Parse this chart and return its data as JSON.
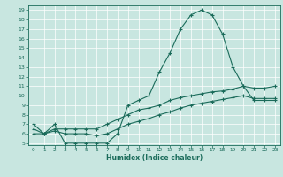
{
  "xlabel": "Humidex (Indice chaleur)",
  "background_color": "#c8e6e0",
  "grid_color": "#ffffff",
  "line_color": "#1a6b5a",
  "xlim": [
    -0.5,
    23.5
  ],
  "ylim": [
    4.8,
    19.5
  ],
  "xticks": [
    0,
    1,
    2,
    3,
    4,
    5,
    6,
    7,
    8,
    9,
    10,
    11,
    12,
    13,
    14,
    15,
    16,
    17,
    18,
    19,
    20,
    21,
    22,
    23
  ],
  "yticks": [
    5,
    6,
    7,
    8,
    9,
    10,
    11,
    12,
    13,
    14,
    15,
    16,
    17,
    18,
    19
  ],
  "line1_x": [
    0,
    1,
    2,
    3,
    4,
    5,
    6,
    7,
    8,
    9,
    10,
    11,
    12,
    13,
    14,
    15,
    16,
    17,
    18,
    19,
    20,
    21,
    22,
    23
  ],
  "line1_y": [
    7,
    6,
    7,
    5,
    5,
    5,
    5,
    5,
    6,
    9,
    9.5,
    10,
    12.5,
    14.5,
    17,
    18.5,
    19,
    18.5,
    16.5,
    13,
    11,
    10.8,
    10.8,
    11
  ],
  "line2_x": [
    0,
    1,
    2,
    3,
    4,
    5,
    6,
    7,
    8,
    9,
    10,
    11,
    12,
    13,
    14,
    15,
    16,
    17,
    18,
    19,
    20,
    21,
    22,
    23
  ],
  "line2_y": [
    6.5,
    6,
    6.5,
    6.5,
    6.5,
    6.5,
    6.5,
    7,
    7.5,
    8,
    8.5,
    8.7,
    9,
    9.5,
    9.8,
    10,
    10.2,
    10.4,
    10.5,
    10.7,
    11,
    9.5,
    9.5,
    9.5
  ],
  "line3_x": [
    0,
    1,
    2,
    3,
    4,
    5,
    6,
    7,
    8,
    9,
    10,
    11,
    12,
    13,
    14,
    15,
    16,
    17,
    18,
    19,
    20,
    21,
    22,
    23
  ],
  "line3_y": [
    6,
    6,
    6.3,
    6,
    6,
    6,
    5.8,
    6,
    6.5,
    7,
    7.3,
    7.6,
    8,
    8.3,
    8.7,
    9,
    9.2,
    9.4,
    9.6,
    9.8,
    10,
    9.7,
    9.7,
    9.7
  ]
}
